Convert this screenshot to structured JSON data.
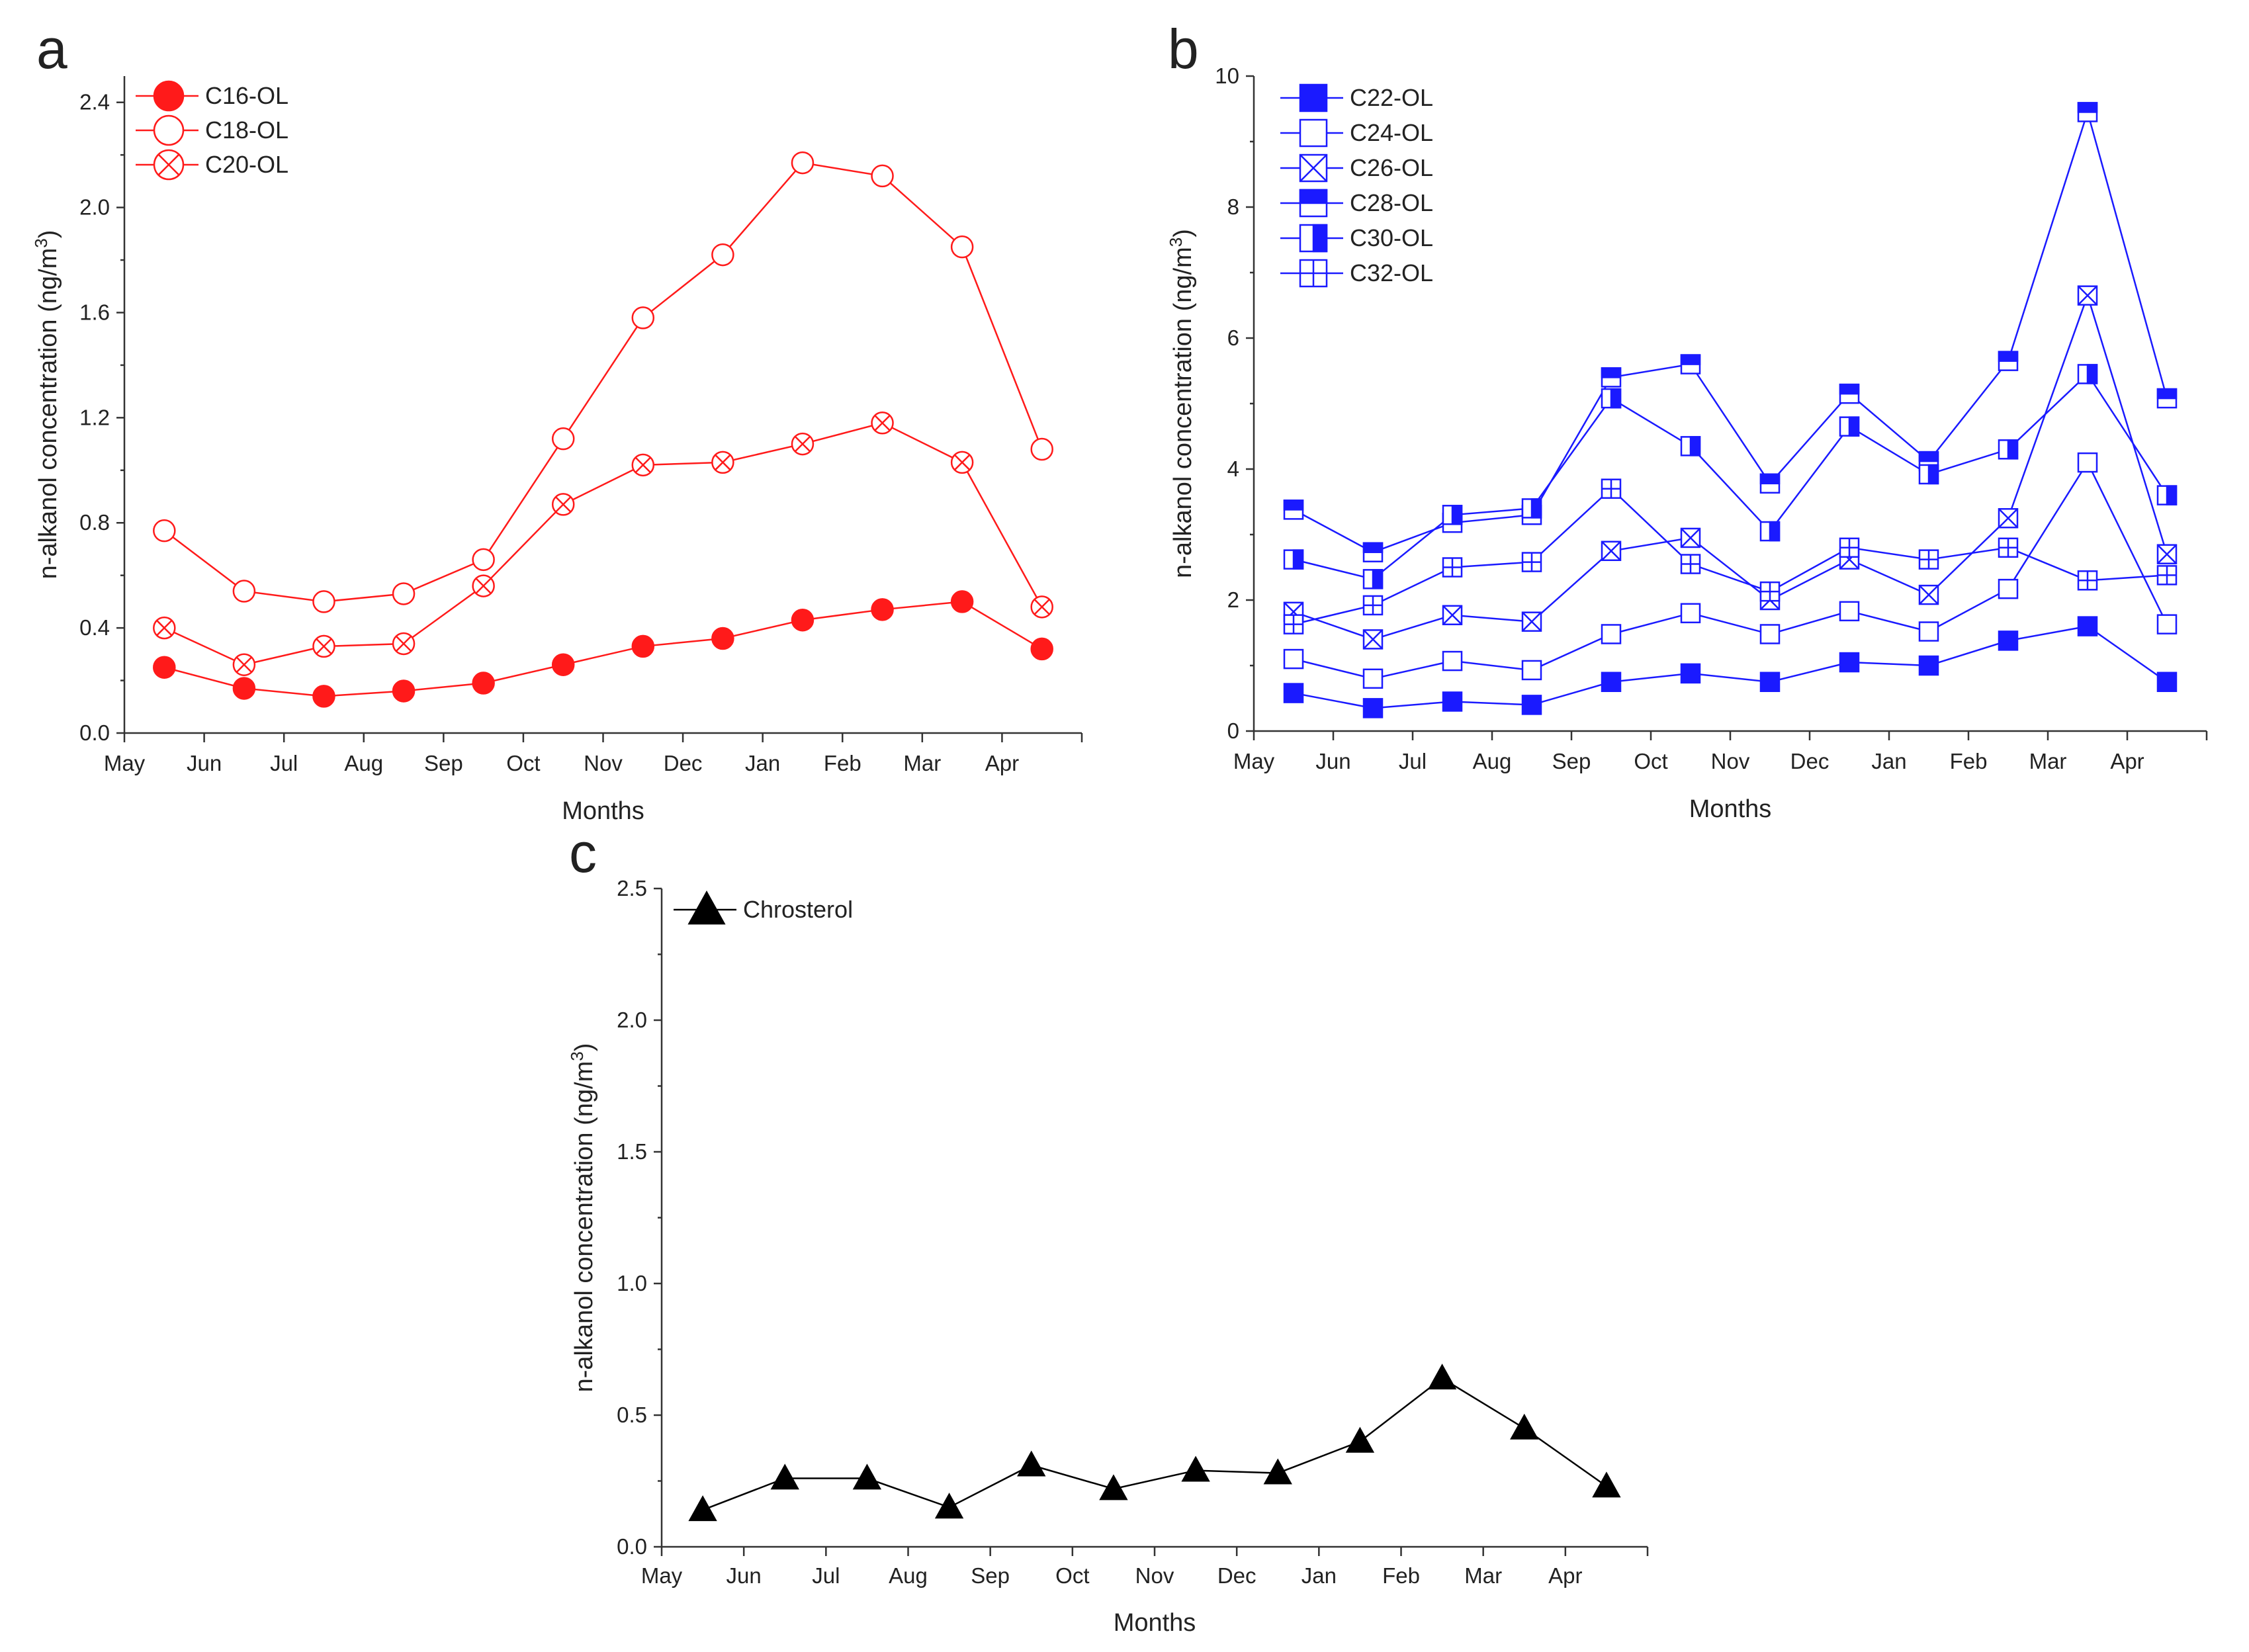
{
  "chart_data": [
    {
      "panel": "a",
      "type": "line",
      "xlabel": "Months",
      "ylabel": "n-alkanol concentration (ng/m3)",
      "ylabel_main": "n-alkanol concentration (ng/m",
      "ylabel_sup": "3",
      "ylabel_end": ")",
      "ylim": [
        0,
        2.5
      ],
      "yticks": [
        0.0,
        0.4,
        0.8,
        1.2,
        1.6,
        2.0,
        2.4
      ],
      "ytick_labels": [
        "0.0",
        "0.4",
        "0.8",
        "1.2",
        "1.6",
        "2.0",
        "2.4"
      ],
      "months": [
        "May",
        "Jun",
        "Jul",
        "Aug",
        "Sep",
        "Oct",
        "Nov",
        "Dec",
        "Jan",
        "Feb",
        "Mar",
        "Apr"
      ],
      "x": [
        0.5,
        1.5,
        2.5,
        3.5,
        4.5,
        5.5,
        6.5,
        7.5,
        8.5,
        9.5,
        10.5,
        11.5
      ],
      "series": [
        {
          "name": "C16-OL",
          "color": "#ff1a1a",
          "marker": "filled-circle",
          "values": [
            0.25,
            0.17,
            0.14,
            0.16,
            0.19,
            0.26,
            0.33,
            0.36,
            0.43,
            0.47,
            0.5,
            0.32
          ]
        },
        {
          "name": "C18-OL",
          "color": "#ff1a1a",
          "marker": "open-circle",
          "values": [
            0.77,
            0.54,
            0.5,
            0.53,
            0.66,
            1.12,
            1.58,
            1.82,
            2.17,
            2.12,
            1.85,
            1.08
          ]
        },
        {
          "name": "C20-OL",
          "color": "#ff1a1a",
          "marker": "x-circle",
          "values": [
            0.4,
            0.26,
            0.33,
            0.34,
            0.56,
            0.87,
            1.02,
            1.03,
            1.1,
            1.18,
            1.03,
            0.48
          ]
        }
      ]
    },
    {
      "panel": "b",
      "type": "line",
      "xlabel": "Months",
      "ylabel": "n-alkanol concentration (ng/m3)",
      "ylabel_main": "n-alkanol concentration (ng/m",
      "ylabel_sup": "3",
      "ylabel_end": ")",
      "ylim": [
        0,
        10
      ],
      "yticks": [
        0,
        2,
        4,
        6,
        8,
        10
      ],
      "ytick_labels": [
        "0",
        "2",
        "4",
        "6",
        "8",
        "10"
      ],
      "months": [
        "May",
        "Jun",
        "Jul",
        "Aug",
        "Sep",
        "Oct",
        "Nov",
        "Dec",
        "Jan",
        "Feb",
        "Mar",
        "Apr"
      ],
      "x": [
        0.5,
        1.5,
        2.5,
        3.5,
        4.5,
        5.5,
        6.5,
        7.5,
        8.5,
        9.5,
        10.5,
        11.5
      ],
      "series": [
        {
          "name": "C22-OL",
          "color": "#1a1aff",
          "marker": "filled-square",
          "values": [
            0.58,
            0.35,
            0.45,
            0.4,
            0.75,
            0.88,
            0.75,
            1.05,
            1.0,
            1.38,
            1.6,
            0.75
          ]
        },
        {
          "name": "C24-OL",
          "color": "#1a1aff",
          "marker": "open-square",
          "values": [
            1.1,
            0.8,
            1.07,
            0.93,
            1.48,
            1.8,
            1.48,
            1.83,
            1.52,
            2.17,
            4.1,
            1.63
          ]
        },
        {
          "name": "C26-OL",
          "color": "#1a1aff",
          "marker": "x-square",
          "values": [
            1.82,
            1.4,
            1.77,
            1.67,
            2.75,
            2.95,
            2.0,
            2.62,
            2.08,
            3.25,
            6.65,
            2.7
          ]
        },
        {
          "name": "C28-OL",
          "color": "#1a1aff",
          "marker": "top-half-square",
          "values": [
            3.38,
            2.73,
            3.18,
            3.3,
            5.4,
            5.6,
            3.78,
            5.15,
            4.12,
            5.65,
            9.45,
            5.08
          ]
        },
        {
          "name": "C30-OL",
          "color": "#1a1aff",
          "marker": "right-half-square",
          "values": [
            2.62,
            2.32,
            3.3,
            3.4,
            5.08,
            4.35,
            3.05,
            4.65,
            3.92,
            4.3,
            5.45,
            3.6
          ]
        },
        {
          "name": "C32-OL",
          "color": "#1a1aff",
          "marker": "plus-square",
          "values": [
            1.63,
            1.92,
            2.5,
            2.58,
            3.7,
            2.55,
            2.13,
            2.8,
            2.62,
            2.8,
            2.3,
            2.38
          ]
        }
      ]
    },
    {
      "panel": "c",
      "type": "line",
      "xlabel": "Months",
      "ylabel": "n-alkanol concentration (ng/m3)",
      "ylabel_main": "n-alkanol concentration (ng/m",
      "ylabel_sup": "3",
      "ylabel_end": ")",
      "ylim": [
        0,
        2.5
      ],
      "yticks": [
        0.0,
        0.5,
        1.0,
        1.5,
        2.0,
        2.5
      ],
      "ytick_labels": [
        "0.0",
        "0.5",
        "1.0",
        "1.5",
        "2.0",
        "2.5"
      ],
      "months": [
        "May",
        "Jun",
        "Jul",
        "Aug",
        "Sep",
        "Oct",
        "Nov",
        "Dec",
        "Jan",
        "Feb",
        "Mar",
        "Apr"
      ],
      "x": [
        0.5,
        1.5,
        2.5,
        3.5,
        4.5,
        5.5,
        6.5,
        7.5,
        8.5,
        9.5,
        10.5,
        11.5
      ],
      "series": [
        {
          "name": "Chrosterol",
          "color": "#000000",
          "marker": "filled-triangle",
          "values": [
            0.14,
            0.26,
            0.26,
            0.15,
            0.31,
            0.22,
            0.29,
            0.28,
            0.4,
            0.64,
            0.45,
            0.23
          ]
        }
      ]
    }
  ]
}
